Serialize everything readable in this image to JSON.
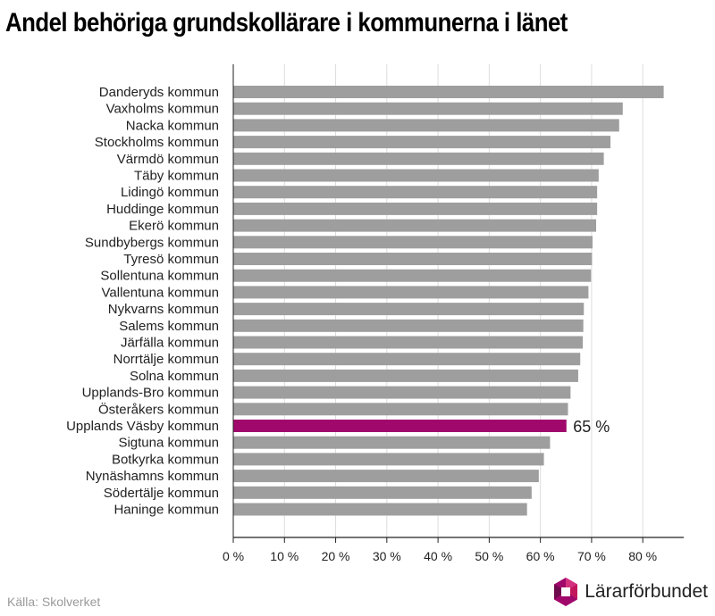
{
  "chart_data": {
    "type": "bar",
    "orientation": "horizontal",
    "title": "Andel behöriga grundskollärare i kommunerna i länet",
    "categories": [
      "Danderyds kommun",
      "Vaxholms kommun",
      "Nacka kommun",
      "Stockholms kommun",
      "Värmdö kommun",
      "Täby kommun",
      "Lidingö kommun",
      "Huddinge kommun",
      "Ekerö kommun",
      "Sundbybergs kommun",
      "Tyresö kommun",
      "Sollentuna kommun",
      "Vallentuna kommun",
      "Nykvarns kommun",
      "Salems kommun",
      "Järfälla kommun",
      "Norrtälje kommun",
      "Solna kommun",
      "Upplands-Bro kommun",
      "Österåkers kommun",
      "Upplands Väsby kommun",
      "Sigtuna kommun",
      "Botkyrka kommun",
      "Nynäshamns kommun",
      "Södertälje kommun",
      "Haninge kommun"
    ],
    "values": [
      84,
      76,
      75.3,
      73.6,
      72.3,
      71.3,
      71,
      71,
      70.8,
      70.1,
      70,
      69.8,
      69.3,
      68.4,
      68.3,
      68.2,
      67.7,
      67.3,
      65.8,
      65.3,
      65,
      61.8,
      60.6,
      59.6,
      58.2,
      57.3
    ],
    "highlight": {
      "category": "Upplands Väsby kommun",
      "label": "65 %",
      "color": "#a0086b"
    },
    "bar_color": "#9e9e9e",
    "xlim": [
      0,
      88
    ],
    "xticks": [
      0,
      10,
      20,
      30,
      40,
      50,
      60,
      70,
      80
    ],
    "tick_labels": [
      "0 %",
      "10 %",
      "20 %",
      "30 %",
      "40 %",
      "50 %",
      "60 %",
      "70 %",
      "80 %"
    ],
    "xlabel": "",
    "ylabel": "",
    "grid": "vertical"
  },
  "footer": {
    "source": "Källa: Skolverket",
    "logo_text": "Lärarförbundet",
    "logo_icon": "lararforbundet-logo-icon"
  }
}
